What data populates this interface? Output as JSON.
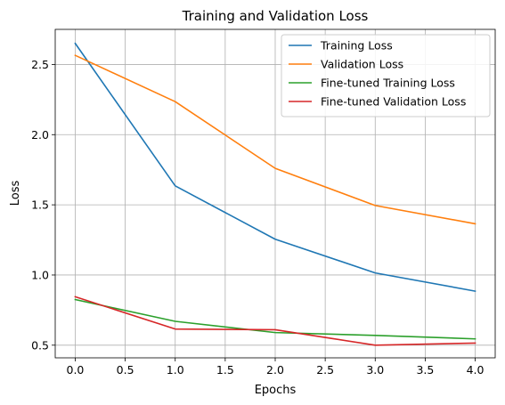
{
  "chart_data": {
    "type": "line",
    "title": "Training and Validation Loss",
    "xlabel": "Epochs",
    "ylabel": "Loss",
    "x": [
      0,
      1,
      2,
      3,
      4
    ],
    "xlim": [
      -0.2,
      4.2
    ],
    "ylim": [
      0.41,
      2.75
    ],
    "xticks": [
      0.0,
      0.5,
      1.0,
      1.5,
      2.0,
      2.5,
      3.0,
      3.5,
      4.0
    ],
    "yticks": [
      0.5,
      1.0,
      1.5,
      2.0,
      2.5
    ],
    "xtick_labels": [
      "0.0",
      "0.5",
      "1.0",
      "1.5",
      "2.0",
      "2.5",
      "3.0",
      "3.5",
      "4.0"
    ],
    "ytick_labels": [
      "0.5",
      "1.0",
      "1.5",
      "2.0",
      "2.5"
    ],
    "grid": true,
    "legend_position": "top-right",
    "series": [
      {
        "name": "Training Loss",
        "color": "#1f77b4",
        "values": [
          2.65,
          1.635,
          1.255,
          1.015,
          0.885
        ]
      },
      {
        "name": "Validation Loss",
        "color": "#ff7f0e",
        "values": [
          2.565,
          2.235,
          1.76,
          1.495,
          1.365
        ]
      },
      {
        "name": "Fine-tuned Training Loss",
        "color": "#2ca02c",
        "values": [
          0.825,
          0.67,
          0.59,
          0.57,
          0.545
        ]
      },
      {
        "name": "Fine-tuned Validation Loss",
        "color": "#d62728",
        "values": [
          0.845,
          0.615,
          0.61,
          0.5,
          0.515
        ]
      }
    ]
  }
}
